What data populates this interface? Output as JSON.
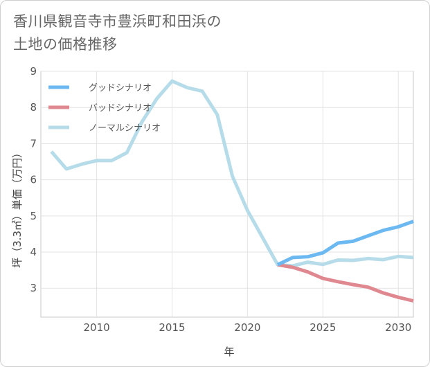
{
  "title": {
    "line1": "香川県観音寺市豊浜町和田浜の",
    "line2": "土地の価格推移"
  },
  "chart_data": {
    "type": "line",
    "xlabel": "年",
    "ylabel": "坪（3.3㎡）単価（万円）",
    "xlim": [
      2006.3,
      2031
    ],
    "ylim": [
      2.2,
      9
    ],
    "x_ticks": [
      2010,
      2015,
      2020,
      2025,
      2030
    ],
    "y_ticks": [
      3,
      4,
      5,
      6,
      7,
      8,
      9
    ],
    "grid": true,
    "legend_position": "top-left",
    "series": [
      {
        "name": "グッドシナリオ",
        "color": "#6cb8f0",
        "x": [
          2022,
          2023,
          2024,
          2025,
          2026,
          2027,
          2028,
          2029,
          2030,
          2031
        ],
        "values": [
          3.65,
          3.85,
          3.87,
          3.98,
          4.25,
          4.3,
          4.45,
          4.6,
          4.7,
          4.85
        ]
      },
      {
        "name": "バッドシナリオ",
        "color": "#e0888f",
        "x": [
          2022,
          2023,
          2024,
          2025,
          2026,
          2027,
          2028,
          2029,
          2030,
          2031
        ],
        "values": [
          3.65,
          3.58,
          3.45,
          3.27,
          3.18,
          3.1,
          3.03,
          2.87,
          2.75,
          2.65
        ]
      },
      {
        "name": "ノーマルシナリオ",
        "color": "#b6dcea",
        "x": [
          2007,
          2008,
          2009,
          2010,
          2011,
          2012,
          2013,
          2014,
          2015,
          2016,
          2017,
          2018,
          2019,
          2020,
          2021,
          2022,
          2023,
          2024,
          2025,
          2026,
          2027,
          2028,
          2029,
          2030,
          2031
        ],
        "values": [
          6.78,
          6.3,
          6.43,
          6.53,
          6.53,
          6.75,
          7.6,
          8.25,
          8.73,
          8.55,
          8.45,
          7.8,
          6.1,
          5.15,
          4.4,
          3.65,
          3.62,
          3.72,
          3.66,
          3.78,
          3.77,
          3.82,
          3.79,
          3.88,
          3.85
        ]
      }
    ]
  }
}
